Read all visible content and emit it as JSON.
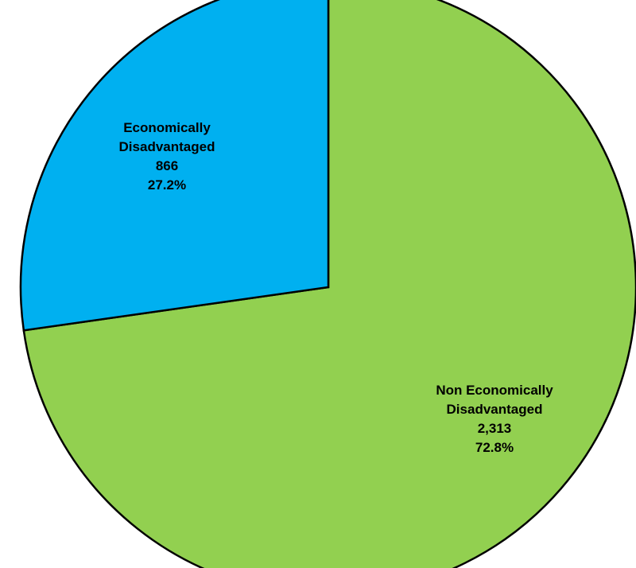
{
  "chart_data": {
    "type": "pie",
    "title": "",
    "legend": "none",
    "slices": [
      {
        "category_lines": [
          "Economically",
          "Disadvantaged"
        ],
        "value": 866,
        "value_label": "866",
        "percent": 27.2,
        "percent_label": "27.2%",
        "color": "#00b0f0"
      },
      {
        "category_lines": [
          "Non Economically",
          "Disadvantaged"
        ],
        "value": 2313,
        "value_label": "2,313",
        "percent": 72.8,
        "percent_label": "72.8%",
        "color": "#92d050"
      }
    ]
  }
}
